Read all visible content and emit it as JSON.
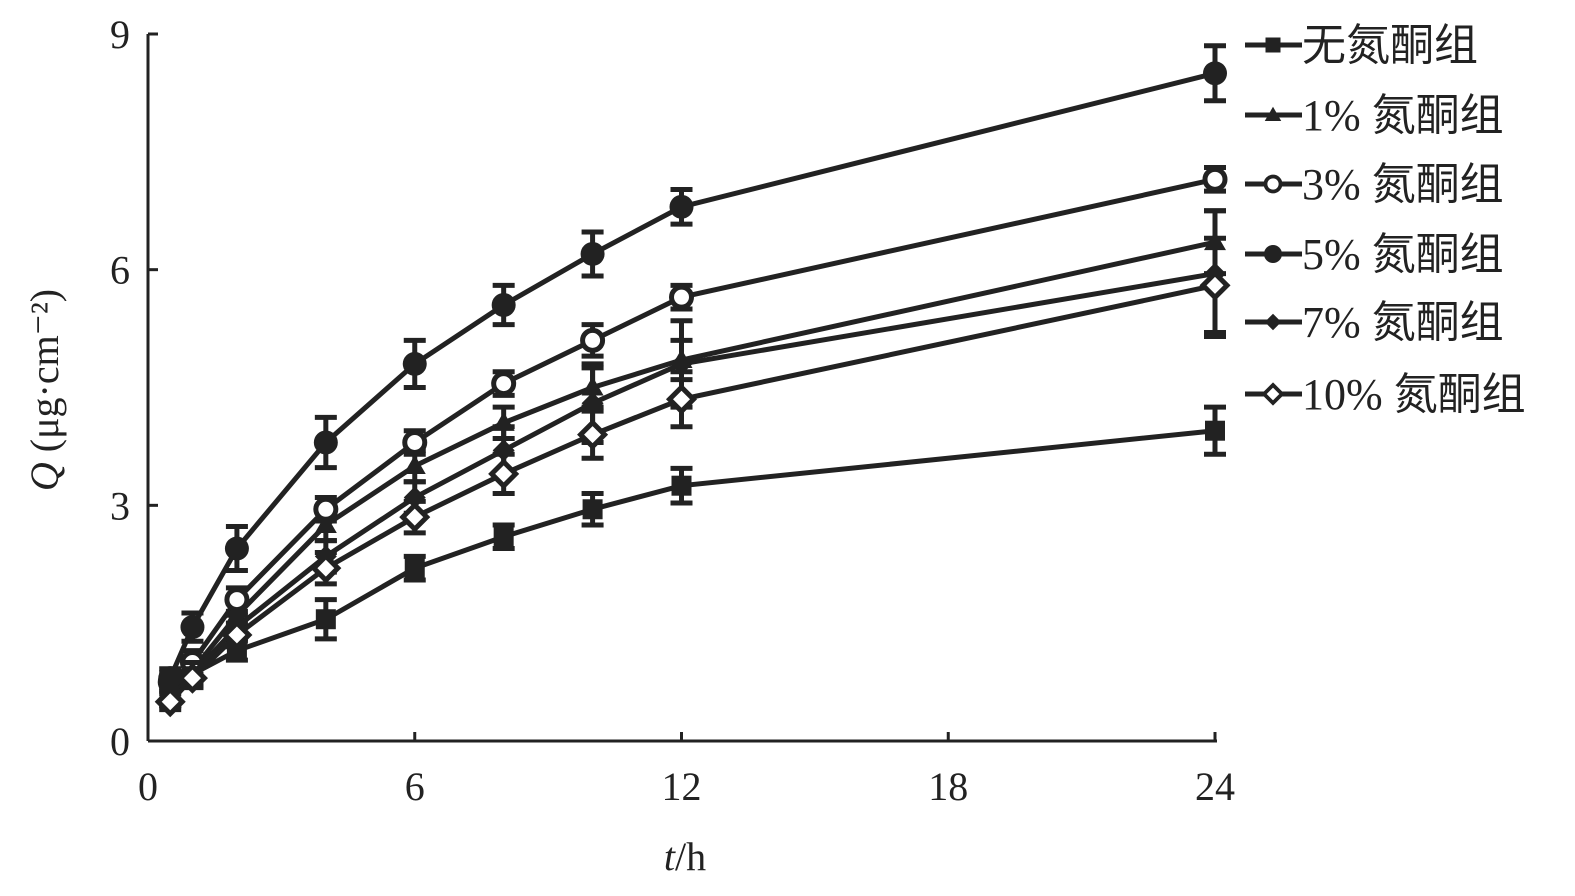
{
  "chart_data": {
    "type": "line",
    "title": "",
    "xlabel": "t/h",
    "xlabel_var": "t",
    "xlabel_unit": "/h",
    "ylabel": "Q (μg·cm⁻²)",
    "ylabel_var": "Q",
    "ylabel_unit": " (μg·cm⁻²)",
    "xlim": [
      0,
      24
    ],
    "ylim": [
      0,
      9
    ],
    "xticks": [
      0,
      6,
      12,
      18,
      24
    ],
    "yticks": [
      0,
      3,
      6,
      9
    ],
    "grid": false,
    "legend_position": "right",
    "x": [
      0.5,
      1,
      2,
      4,
      6,
      8,
      10,
      12,
      24
    ],
    "series": [
      {
        "name": "无氮酮组",
        "marker": "square",
        "values": [
          0.6,
          0.85,
          1.15,
          1.55,
          2.2,
          2.6,
          2.95,
          3.25,
          3.95
        ],
        "errors": [
          0.15,
          0.15,
          0.12,
          0.25,
          0.15,
          0.15,
          0.2,
          0.22,
          0.3
        ]
      },
      {
        "name": "1% 氮酮组",
        "marker": "triangle",
        "values": [
          0.65,
          0.9,
          1.6,
          2.75,
          3.5,
          4.05,
          4.5,
          4.85,
          6.35
        ],
        "errors": [
          0.12,
          0.15,
          0.15,
          0.2,
          0.2,
          0.2,
          0.25,
          0.25,
          0.4
        ]
      },
      {
        "name": "3% 氮酮组",
        "marker": "open-circle",
        "values": [
          0.75,
          1.0,
          1.8,
          2.95,
          3.8,
          4.55,
          5.1,
          5.65,
          7.15
        ],
        "errors": [
          0.12,
          0.15,
          0.15,
          0.15,
          0.15,
          0.15,
          0.2,
          0.15,
          0.15
        ]
      },
      {
        "name": "5% 氮酮组",
        "marker": "filled-circle",
        "values": [
          0.8,
          1.45,
          2.45,
          3.8,
          4.8,
          5.55,
          6.2,
          6.8,
          8.5
        ],
        "errors": [
          0.12,
          0.18,
          0.28,
          0.32,
          0.3,
          0.25,
          0.28,
          0.22,
          0.35
        ]
      },
      {
        "name": "7% 氮酮组",
        "marker": "diamond",
        "values": [
          0.55,
          0.85,
          1.45,
          2.35,
          3.1,
          3.7,
          4.3,
          4.8,
          5.95
        ],
        "errors": [
          0.1,
          0.15,
          0.15,
          0.2,
          0.2,
          0.3,
          0.5,
          0.55,
          0.8
        ]
      },
      {
        "name": "10% 氮酮组",
        "marker": "open-diamond",
        "values": [
          0.5,
          0.8,
          1.35,
          2.2,
          2.85,
          3.4,
          3.9,
          4.35,
          5.8
        ],
        "errors": [
          0.1,
          0.12,
          0.15,
          0.2,
          0.2,
          0.25,
          0.3,
          0.35,
          0.6
        ]
      }
    ]
  }
}
